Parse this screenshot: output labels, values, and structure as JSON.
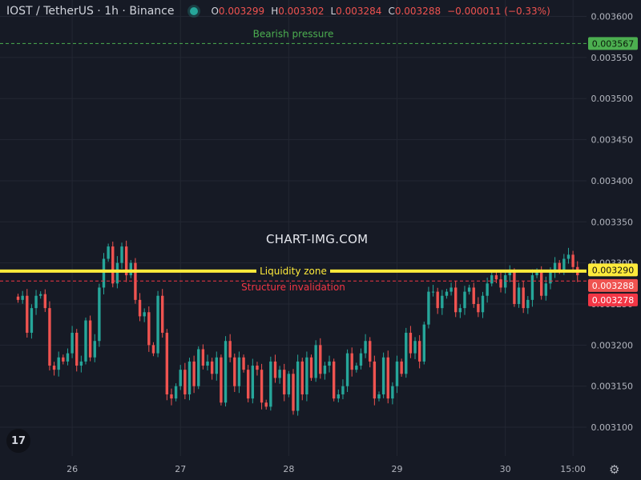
{
  "header": {
    "symbol": "IOST / TetherUS · 1h · Binance",
    "ohlc": [
      {
        "k": "O",
        "v": "0.003299"
      },
      {
        "k": "H",
        "v": "0.003302"
      },
      {
        "k": "L",
        "v": "0.003284"
      },
      {
        "k": "C",
        "v": "0.003288"
      },
      {
        "k": "",
        "v": "−0.000011 (−0.33%)"
      }
    ]
  },
  "watermark": "CHART-IMG.COM",
  "logo_text": "17",
  "colors": {
    "up": "#26a69a",
    "down": "#ef5350",
    "liquidity": "#ffeb3b",
    "bearish": "#4caf50",
    "invalidation": "#f23645",
    "background": "#161a25",
    "grid": "#232733"
  },
  "icons": {
    "settings": "gear-icon",
    "logo": "tradingview-logo-icon"
  },
  "chart_data": {
    "type": "candlestick",
    "timeframe": "1h",
    "y_ticks": [
      "0.003600",
      "0.003550",
      "0.003500",
      "0.003450",
      "0.003400",
      "0.003350",
      "0.003300",
      "0.003250",
      "0.003200",
      "0.003150",
      "0.003100"
    ],
    "y_range": [
      0.003065,
      0.00362
    ],
    "x_ticks": [
      {
        "label": "26",
        "t": 12
      },
      {
        "label": "27",
        "t": 36
      },
      {
        "label": "28",
        "t": 60
      },
      {
        "label": "29",
        "t": 84
      },
      {
        "label": "30",
        "t": 108
      },
      {
        "label": "15:00",
        "t": 123
      }
    ],
    "x_range": [
      -4,
      126
    ],
    "closes": [
      0.003255,
      0.00326,
      0.003215,
      0.003245,
      0.00326,
      0.003262,
      0.003245,
      0.003175,
      0.00317,
      0.003185,
      0.00318,
      0.00319,
      0.003215,
      0.003175,
      0.00318,
      0.00323,
      0.003185,
      0.003205,
      0.00327,
      0.003305,
      0.00332,
      0.003275,
      0.0033,
      0.00332,
      0.003285,
      0.0033,
      0.003255,
      0.003235,
      0.00324,
      0.0032,
      0.00319,
      0.00326,
      0.003215,
      0.00314,
      0.003135,
      0.00315,
      0.00317,
      0.00314,
      0.00318,
      0.00315,
      0.003195,
      0.003175,
      0.00318,
      0.003165,
      0.003185,
      0.00313,
      0.003205,
      0.003185,
      0.00315,
      0.003185,
      0.00317,
      0.003135,
      0.003175,
      0.00317,
      0.00313,
      0.003125,
      0.00318,
      0.00316,
      0.00317,
      0.00314,
      0.003165,
      0.00312,
      0.00318,
      0.00314,
      0.003185,
      0.00316,
      0.0032,
      0.003165,
      0.003175,
      0.00318,
      0.003135,
      0.00314,
      0.00315,
      0.00319,
      0.00317,
      0.003175,
      0.00319,
      0.003205,
      0.00318,
      0.003135,
      0.00314,
      0.003185,
      0.003135,
      0.00315,
      0.00318,
      0.003165,
      0.003215,
      0.00319,
      0.003205,
      0.00318,
      0.003225,
      0.003265,
      0.003265,
      0.003245,
      0.00326,
      0.003265,
      0.00327,
      0.00324,
      0.003245,
      0.003265,
      0.00327,
      0.00325,
      0.00324,
      0.00326,
      0.003275,
      0.003285,
      0.00328,
      0.00327,
      0.003285,
      0.00329,
      0.00325,
      0.00327,
      0.003245,
      0.003255,
      0.003285,
      0.00329,
      0.00326,
      0.003275,
      0.00329,
      0.0033,
      0.00329,
      0.003305,
      0.00331,
      0.003295,
      0.003285
    ],
    "levels": [
      {
        "name": "Bearish pressure",
        "price": 0.003567,
        "price_label": "0.003567",
        "style": "dashed",
        "color_key": "bearish"
      },
      {
        "name": "Liquidity zone",
        "price": 0.00329,
        "price_label": "0.003290",
        "style": "solid",
        "color_key": "liquidity"
      },
      {
        "name": "Structure invalidation",
        "price": 0.003278,
        "price_label": "0.003278",
        "style": "dashed",
        "color_key": "invalidation"
      }
    ],
    "last_price": {
      "price": 0.003288,
      "label": "0.003288"
    }
  }
}
